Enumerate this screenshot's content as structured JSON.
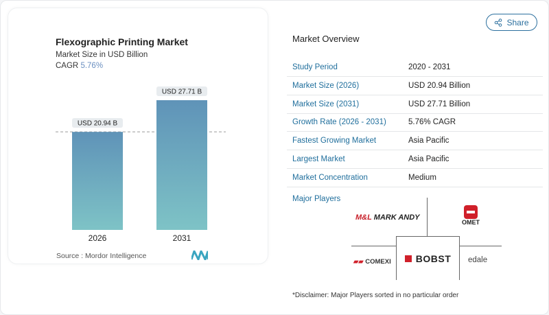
{
  "share_label": "Share",
  "chart_data": {
    "type": "bar",
    "title": "Flexographic Printing Market",
    "subtitle": "Market Size in USD Billion",
    "cagr_label": "CAGR",
    "cagr_value": "5.76%",
    "categories": [
      "2026",
      "2031"
    ],
    "values": [
      20.94,
      27.71
    ],
    "data_labels": [
      "USD 20.94 B",
      "USD 27.71 B"
    ],
    "ylim": [
      0,
      27.71
    ],
    "grid": false,
    "bar_color_top": "#5f93b8",
    "bar_color_bottom": "#7ec3c6",
    "source": "Source :  Mordor Intelligence"
  },
  "overview": {
    "title": "Market Overview",
    "rows": [
      {
        "label": "Study Period",
        "value": "2020 - 2031"
      },
      {
        "label": "Market Size (2026)",
        "value": "USD 20.94 Billion"
      },
      {
        "label": "Market Size (2031)",
        "value": "USD 27.71 Billion"
      },
      {
        "label": "Growth Rate (2026 - 2031)",
        "value": "5.76% CAGR"
      },
      {
        "label": "Fastest Growing Market",
        "value": "Asia Pacific"
      },
      {
        "label": "Largest Market",
        "value": "Asia Pacific"
      },
      {
        "label": "Market Concentration",
        "value": "Medium"
      }
    ]
  },
  "major_players": {
    "title": "Major Players",
    "players": [
      "MARK ANDY",
      "OMET",
      "COMEXI",
      "BOBST",
      "edale"
    ]
  },
  "disclaimer": "*Disclaimer: Major Players sorted in no particular order"
}
